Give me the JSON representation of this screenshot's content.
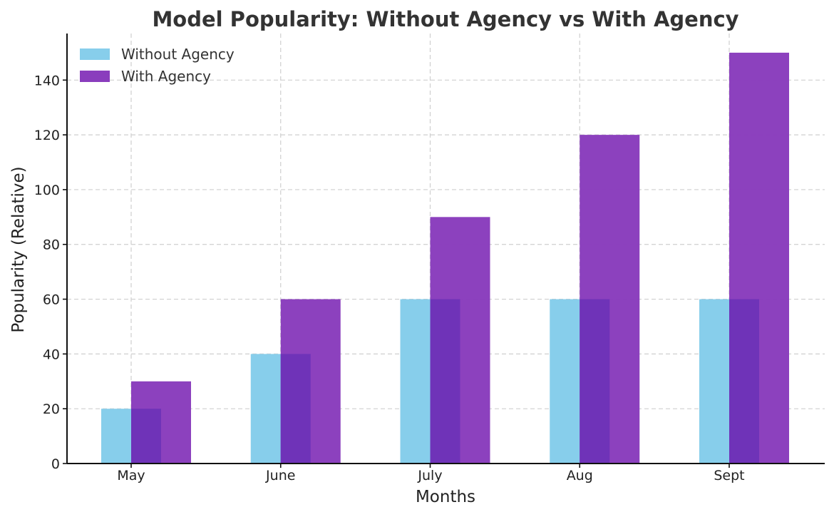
{
  "chart_data": {
    "type": "bar",
    "title": "Model Popularity: Without Agency vs With Agency",
    "xlabel": "Months",
    "ylabel": "Popularity (Relative)",
    "categories": [
      "May",
      "June",
      "July",
      "Aug",
      "Sept"
    ],
    "ylim": [
      0,
      157
    ],
    "yticks": [
      0,
      20,
      40,
      60,
      80,
      100,
      120,
      140
    ],
    "grid": true,
    "legend_position": "top-left",
    "series": [
      {
        "name": "Without Agency",
        "values": [
          20,
          40,
          60,
          60,
          60
        ],
        "color": "#87ceeb"
      },
      {
        "name": "With Agency",
        "values": [
          30,
          60,
          90,
          120,
          150
        ],
        "color": "#8a3dbd"
      }
    ]
  }
}
